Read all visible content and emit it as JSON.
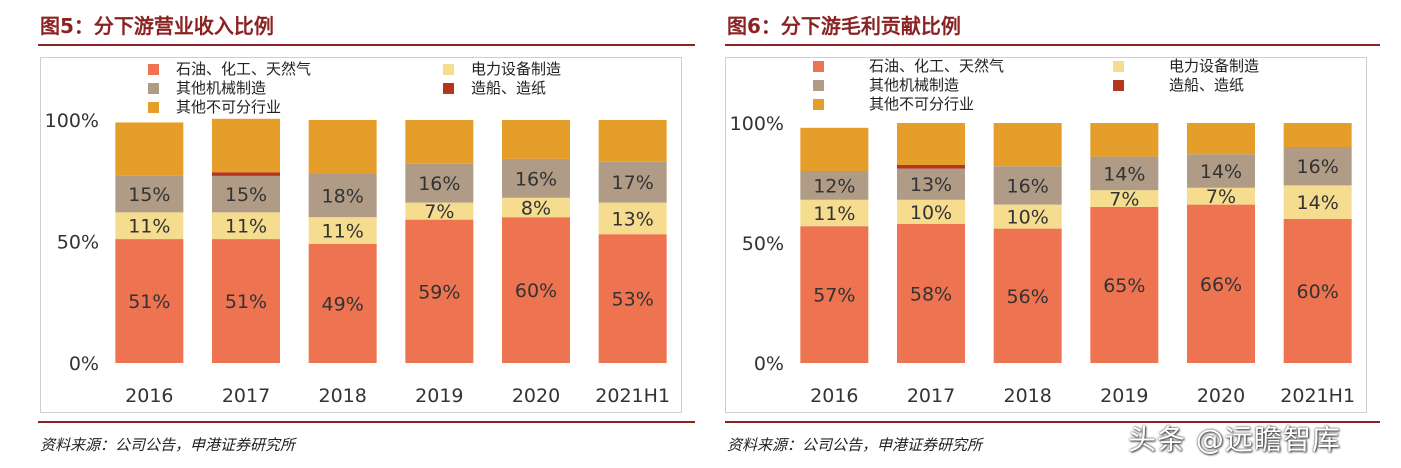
{
  "colors": {
    "title": "#8B2323",
    "rule": "#8B2323",
    "series": [
      "#EE7350",
      "#F5DC8E",
      "#B09C86",
      "#B3361D",
      "#E59E2A"
    ],
    "label_text": "#333333"
  },
  "watermark": "头条 @远瞻智库",
  "chart_data": [
    {
      "type": "bar",
      "stacked": true,
      "title": "图5：分下游营业收入比例",
      "source": "资料来源：公司公告，申港证券研究所",
      "categories": [
        "2016",
        "2017",
        "2018",
        "2019",
        "2020",
        "2021H1"
      ],
      "ytick_labels": [
        "0%",
        "50%",
        "100%"
      ],
      "yticks": [
        0,
        50,
        100
      ],
      "ylim": [
        0,
        100
      ],
      "grid": false,
      "legend_position": "top",
      "series": [
        {
          "name": "石油、化工、天然气",
          "values": [
            51,
            51,
            49,
            59,
            60,
            53
          ],
          "labels": [
            "51%",
            "51%",
            "49%",
            "59%",
            "60%",
            "53%"
          ]
        },
        {
          "name": "电力设备制造",
          "values": [
            11,
            11,
            11,
            7,
            8,
            13
          ],
          "labels": [
            "11%",
            "11%",
            "11%",
            "7%",
            "8%",
            "13%"
          ]
        },
        {
          "name": "其他机械制造",
          "values": [
            15,
            15,
            18,
            16,
            16,
            17
          ],
          "labels": [
            "15%",
            "15%",
            "18%",
            "16%",
            "16%",
            "17%"
          ]
        },
        {
          "name": "造船、造纸",
          "values": [
            0,
            1.5,
            0,
            0,
            0,
            0
          ],
          "labels": [
            "",
            "",
            "",
            "",
            "",
            ""
          ]
        },
        {
          "name": "其他不可分行业",
          "values": [
            22,
            22,
            22,
            18,
            16,
            17
          ],
          "labels": [
            "",
            "",
            "",
            "",
            "",
            ""
          ]
        }
      ]
    },
    {
      "type": "bar",
      "stacked": true,
      "title": "图6：分下游毛利贡献比例",
      "source": "资料来源：公司公告，申港证券研究所",
      "categories": [
        "2016",
        "2017",
        "2018",
        "2019",
        "2020",
        "2021H1"
      ],
      "ytick_labels": [
        "0%",
        "50%",
        "100%"
      ],
      "yticks": [
        0,
        50,
        100
      ],
      "ylim": [
        0,
        100
      ],
      "grid": false,
      "legend_position": "top",
      "series": [
        {
          "name": "石油、化工、天然气",
          "values": [
            57,
            58,
            56,
            65,
            66,
            60
          ],
          "labels": [
            "57%",
            "58%",
            "56%",
            "65%",
            "66%",
            "60%"
          ]
        },
        {
          "name": "电力设备制造",
          "values": [
            11,
            10,
            10,
            7,
            7,
            14
          ],
          "labels": [
            "11%",
            "10%",
            "10%",
            "7%",
            "7%",
            "14%"
          ]
        },
        {
          "name": "其他机械制造",
          "values": [
            12,
            13,
            16,
            14,
            14,
            16
          ],
          "labels": [
            "12%",
            "13%",
            "16%",
            "14%",
            "14%",
            "16%"
          ]
        },
        {
          "name": "造船、造纸",
          "values": [
            0,
            1.5,
            0,
            0,
            0,
            0
          ],
          "labels": [
            "",
            "",
            "",
            "",
            "",
            ""
          ]
        },
        {
          "name": "其他不可分行业",
          "values": [
            18,
            17.5,
            18,
            14,
            13,
            10
          ],
          "labels": [
            "",
            "",
            "",
            "",
            "",
            ""
          ]
        }
      ]
    }
  ]
}
